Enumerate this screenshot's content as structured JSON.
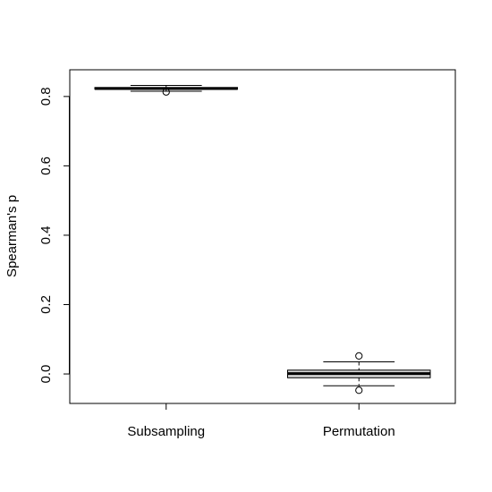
{
  "chart_data": {
    "type": "boxplot",
    "title": "",
    "xlabel": "",
    "ylabel": "Spearman's p",
    "ylim": [
      -0.085,
      0.877
    ],
    "yticks": [
      0.0,
      0.2,
      0.4,
      0.6,
      0.8
    ],
    "ytick_labels": [
      "0.0",
      "0.2",
      "0.4",
      "0.6",
      "0.8"
    ],
    "categories": [
      "Subsampling",
      "Permutation"
    ],
    "boxes": [
      {
        "name": "Subsampling",
        "whisker_low": 0.815,
        "q1": 0.821,
        "median": 0.823,
        "q3": 0.826,
        "whisker_high": 0.832,
        "outliers": [
          0.813
        ]
      },
      {
        "name": "Permutation",
        "whisker_low": -0.034,
        "q1": -0.011,
        "median": 0.001,
        "q3": 0.011,
        "whisker_high": 0.035,
        "outliers": [
          0.052,
          -0.047
        ]
      }
    ],
    "box_fill": "#d3d3d3",
    "line_color": "#000000",
    "grid": false,
    "legend": "none"
  }
}
